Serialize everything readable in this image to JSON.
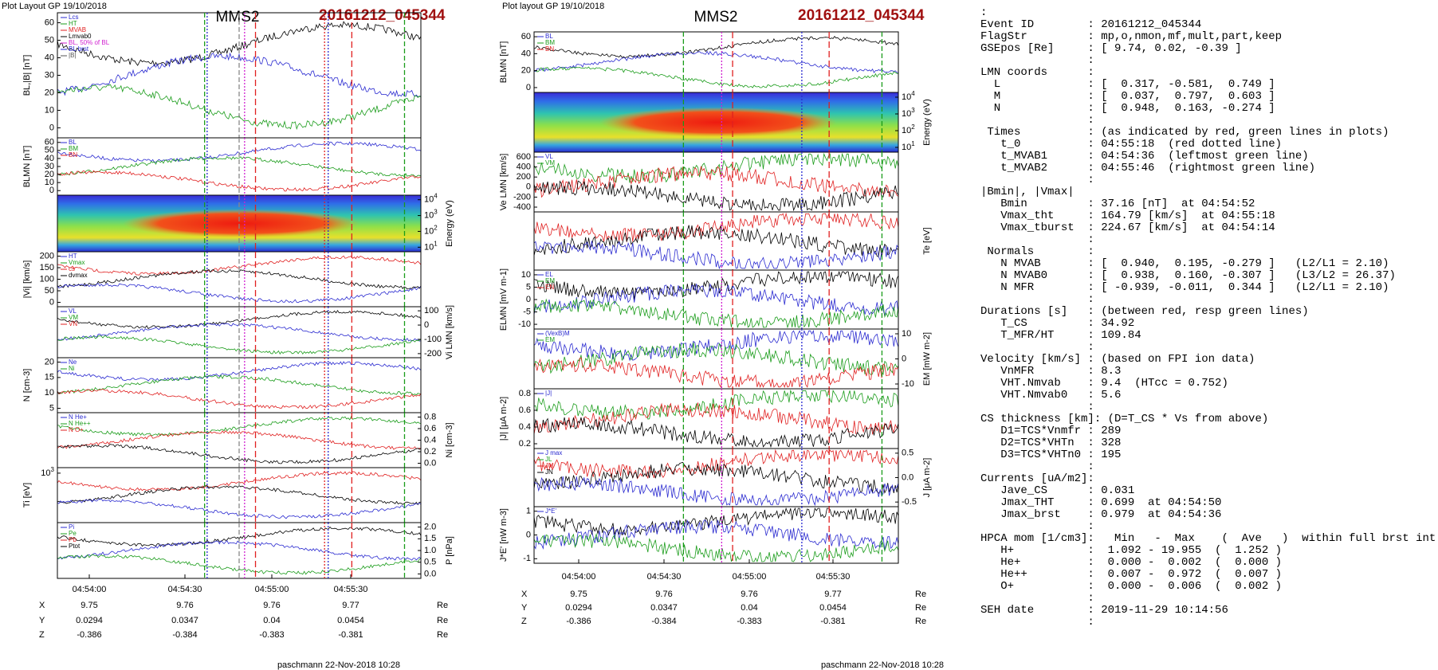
{
  "figures": [
    {
      "header": "Plot Layout GP 19/10/2018",
      "title": "MMS2",
      "event_id": "20161212_045344",
      "panels": [
        {
          "ylabel": "BL,|B| [nT]",
          "side": "left",
          "ticks": [
            "60",
            "50",
            "40",
            "30",
            "20",
            "10",
            "0"
          ],
          "legend": [
            "Lcs",
            "HT",
            "MVAB",
            "Lmvab0",
            "BL, 50% of BL",
            "BL brst",
            "|B|"
          ]
        },
        {
          "ylabel": "BLMN [nT]",
          "side": "left",
          "ticks": [
            "60",
            "50",
            "40",
            "30",
            "20",
            "10",
            "0"
          ],
          "legend": [
            "BL",
            "BM",
            "BN"
          ]
        },
        {
          "ylabel": "Energy (eV)",
          "side": "right",
          "spectrogram": true,
          "ticks": [
            {
              "base": "10",
              "exp": "4"
            },
            {
              "base": "10",
              "exp": "3"
            },
            {
              "base": "10",
              "exp": "2"
            },
            {
              "base": "10",
              "exp": "1"
            }
          ],
          "legend": []
        },
        {
          "ylabel": "|Vi| [km/s]",
          "side": "left",
          "ticks": [
            "200",
            "150",
            "100",
            "50",
            "0"
          ],
          "legend": [
            "HT",
            "Vmax",
            "cs",
            "dvmax"
          ]
        },
        {
          "ylabel": "Vi LMN [km/s]",
          "side": "right",
          "ticks": [
            "100",
            "0",
            "-100",
            "-200"
          ],
          "legend": [
            "VL",
            "VM",
            "VN"
          ]
        },
        {
          "ylabel": "N [cm-3]",
          "side": "left",
          "ticks": [
            "20",
            "15",
            "10",
            "5"
          ],
          "legend": [
            "Ne",
            "Ni"
          ]
        },
        {
          "ylabel": "Ni [cm-3]",
          "side": "right",
          "ticks": [
            "0.8",
            "0.6",
            "0.4",
            "0.2",
            "0.0"
          ],
          "legend": [
            "N  He+",
            "N  He++",
            "N  O+"
          ]
        },
        {
          "ylabel": "Ti [eV]",
          "side": "left",
          "ticks": [
            {
              "base": "10",
              "exp": "3"
            }
          ],
          "legend": []
        },
        {
          "ylabel": "P [nPa]",
          "side": "right",
          "ticks": [
            "2.0",
            "1.5",
            "1.0",
            "0.5",
            "0.0"
          ],
          "legend": [
            "Pi",
            "Pe",
            "Pb",
            "Ptot"
          ]
        }
      ],
      "time_labels": [
        "04:54:00",
        "04:54:30",
        "04:55:00",
        "04:55:30"
      ],
      "rows": [
        {
          "label": "X",
          "values": [
            "9.75",
            "9.76",
            "9.76",
            "9.77"
          ],
          "unit": "Re"
        },
        {
          "label": "Y",
          "values": [
            "0.0294",
            "0.0347",
            "0.04",
            "0.0454"
          ],
          "unit": "Re"
        },
        {
          "label": "Z",
          "values": [
            "-0.386",
            "-0.384",
            "-0.383",
            "-0.381"
          ],
          "unit": "Re"
        }
      ],
      "footer": "paschmann 22-Nov-2018 10:28"
    },
    {
      "header": "Plot layout GP 19/10/2018",
      "title": "MMS2",
      "event_id": "20161212_045344",
      "panels": [
        {
          "ylabel": "BLMN [nT]",
          "side": "left",
          "ticks": [
            "60",
            "40",
            "20",
            "0"
          ],
          "legend": [
            "BL",
            "BM",
            "BN"
          ]
        },
        {
          "ylabel": "Energy (eV)",
          "side": "right",
          "spectrogram": true,
          "ticks": [
            {
              "base": "10",
              "exp": "4"
            },
            {
              "base": "10",
              "exp": "3"
            },
            {
              "base": "10",
              "exp": "2"
            },
            {
              "base": "10",
              "exp": "1"
            }
          ],
          "legend": []
        },
        {
          "ylabel": "Ve LMN [km/s]",
          "side": "left",
          "ticks": [
            "600",
            "400",
            "200",
            "0",
            "-200",
            "-400"
          ],
          "legend": [
            "VL",
            "VM"
          ]
        },
        {
          "ylabel": "Te [eV]",
          "side": "right",
          "ticks": [],
          "legend": []
        },
        {
          "ylabel": "ELMN [mV m-1]",
          "side": "left",
          "ticks": [
            "10",
            "5",
            "0",
            "-5",
            "-10"
          ],
          "legend": [
            "EL",
            "EM",
            "EN"
          ]
        },
        {
          "ylabel": "EM [mW m-2]",
          "side": "right",
          "ticks": [
            "10",
            "0",
            "-10"
          ],
          "legend": [
            "(VexB)M",
            "EM"
          ]
        },
        {
          "ylabel": "|J| [μA m-2]",
          "side": "left",
          "ticks": [
            "0.8",
            "0.6",
            "0.4",
            "0.2"
          ],
          "legend": [
            "|J|"
          ]
        },
        {
          "ylabel": "J [μA m-2]",
          "side": "right",
          "ticks": [
            "0.5",
            "0.0",
            "-0.5"
          ],
          "legend": [
            "J max",
            "JL",
            "JM",
            "JN"
          ]
        },
        {
          "ylabel": "J*E' [nW m-3]",
          "side": "left",
          "ticks": [
            "1",
            "0",
            "-1"
          ],
          "legend": [
            "J*E'"
          ]
        }
      ],
      "time_labels": [
        "04:54:00",
        "04:54:30",
        "04:55:00",
        "04:55:30"
      ],
      "rows": [
        {
          "label": "X",
          "values": [
            "9.75",
            "9.76",
            "9.76",
            "9.77"
          ],
          "unit": "Re"
        },
        {
          "label": "Y",
          "values": [
            "0.0294",
            "0.0347",
            "0.04",
            "0.0454"
          ],
          "unit": "Re"
        },
        {
          "label": "Z",
          "values": [
            "-0.386",
            "-0.384",
            "-0.383",
            "-0.381"
          ],
          "unit": "Re"
        }
      ],
      "footer": "paschmann 22-Nov-2018 10:28"
    }
  ],
  "info_lines": [
    ":",
    "Event ID        : 20161212_045344",
    "FlagStr         : mp,o,nmon,mf,mult,part,keep",
    "GSEpos [Re]     : [ 9.74, 0.02, -0.39 ]",
    "                :",
    "LMN coords      :",
    "  L             : [  0.317, -0.581,  0.749 ]",
    "  M             : [  0.037,  0.797,  0.603 ]",
    "  N             : [  0.948,  0.163, -0.274 ]",
    "                :",
    " Times          : (as indicated by red, green lines in plots)",
    "   t_0          : 04:55:18  (red dotted line)",
    "   t_MVAB1      : 04:54:36  (leftmost green line)",
    "   t_MVAB2      : 04:55:46  (rightmost green line)",
    "                :",
    "|Bmin|, |Vmax|",
    "   Bmin         : 37.16 [nT]  at 04:54:52",
    "   Vmax_tht     : 164.79 [km/s]  at 04:55:18",
    "   Vmax_tburst  : 224.67 [km/s]  at 04:54:14",
    "                :",
    " Normals        :",
    "   N MVAB       : [  0.940,  0.195, -0.279 ]   (L2/L1 = 2.10)",
    "   N MVAB0      : [  0.938,  0.160, -0.307 ]   (L3/L2 = 26.37)",
    "   N MFR        : [ -0.939, -0.011,  0.344 ]   (L2/L1 = 2.10)",
    "                :",
    "Durations [s]   : (between red, resp green lines)",
    "   T_CS         : 34.92",
    "   T_MFR/HT     : 109.84",
    "                :",
    "Velocity [km/s] : (based on FPI ion data)",
    "   VnMFR        : 8.3",
    "   VHT.Nmvab    : 9.4  (HTcc = 0.752)",
    "   VHT.Nmvab0   : 5.6",
    "                :",
    "CS thickness [km]: (D=T_CS * Vs from above)",
    "   D1=TCS*Vnmfr : 289",
    "   D2=TCS*VHTn  : 328",
    "   D3=TCS*VHTn0 : 195",
    "                :",
    "Currents [uA/m2]:",
    "   Jave_CS      : 0.031",
    "   Jmax_THT     : 0.699  at 04:54:50",
    "   Jmax_brst    : 0.979  at 04:54:36",
    "                :",
    "HPCA mom [1/cm3]:   Min   -  Max    (  Ave   )  within full brst int",
    "   H+           :  1.092 - 19.955  (  1.252 )",
    "   He+          :  0.000 -  0.002  (  0.000 )",
    "   He++         :  0.007 -  0.972  (  0.007 )",
    "   O+           :  0.000 -  0.006  (  0.002 )",
    "                :",
    "SEH date        : 2019-11-29 10:14:56",
    "                :"
  ]
}
